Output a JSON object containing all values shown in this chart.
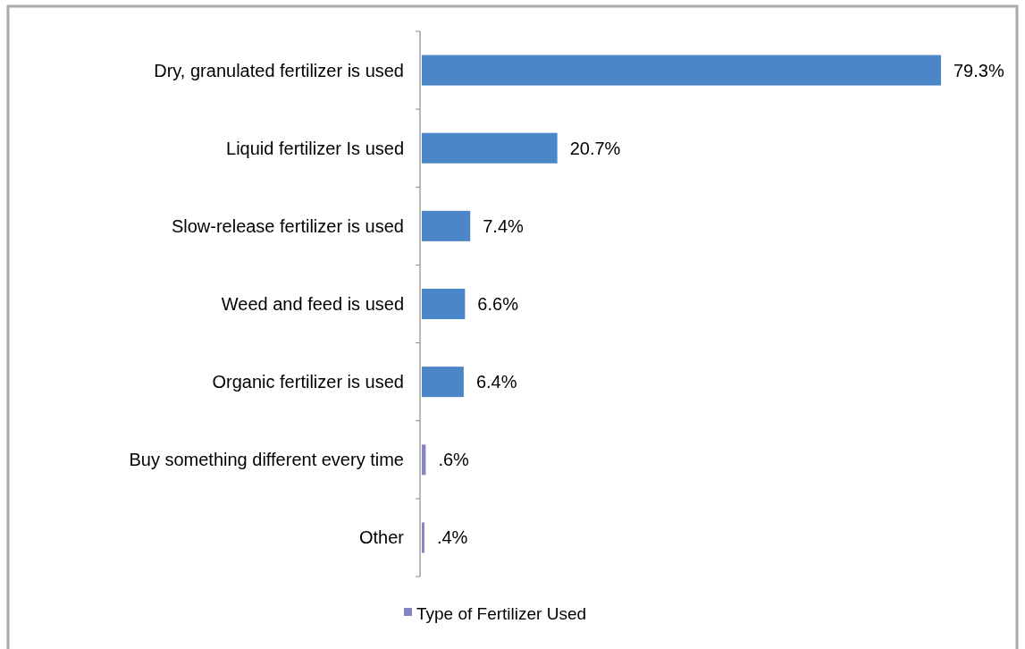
{
  "chart_data": {
    "type": "bar",
    "orientation": "horizontal",
    "categories": [
      "Dry, granulated fertilizer is used",
      "Liquid fertilizer Is used",
      "Slow-release fertilizer is used",
      "Weed and feed is used",
      "Organic fertilizer is used",
      "Buy something different every time",
      "Other"
    ],
    "series": [
      {
        "name": "Type of Fertilizer Used",
        "color": "#8585c0",
        "values": [
          79.3,
          20.7,
          7.4,
          6.6,
          6.4,
          0.6,
          0.4
        ],
        "colors": [
          "#4a86c8",
          "#4a86c8",
          "#4a86c8",
          "#4a86c8",
          "#4a86c8",
          "#8585c0",
          "#8585c0"
        ],
        "value_labels": [
          "79.3%",
          "20.7%",
          "7.4%",
          "6.6%",
          "6.4%",
          ".6%",
          ".4%"
        ]
      }
    ],
    "legend": "bottom"
  }
}
